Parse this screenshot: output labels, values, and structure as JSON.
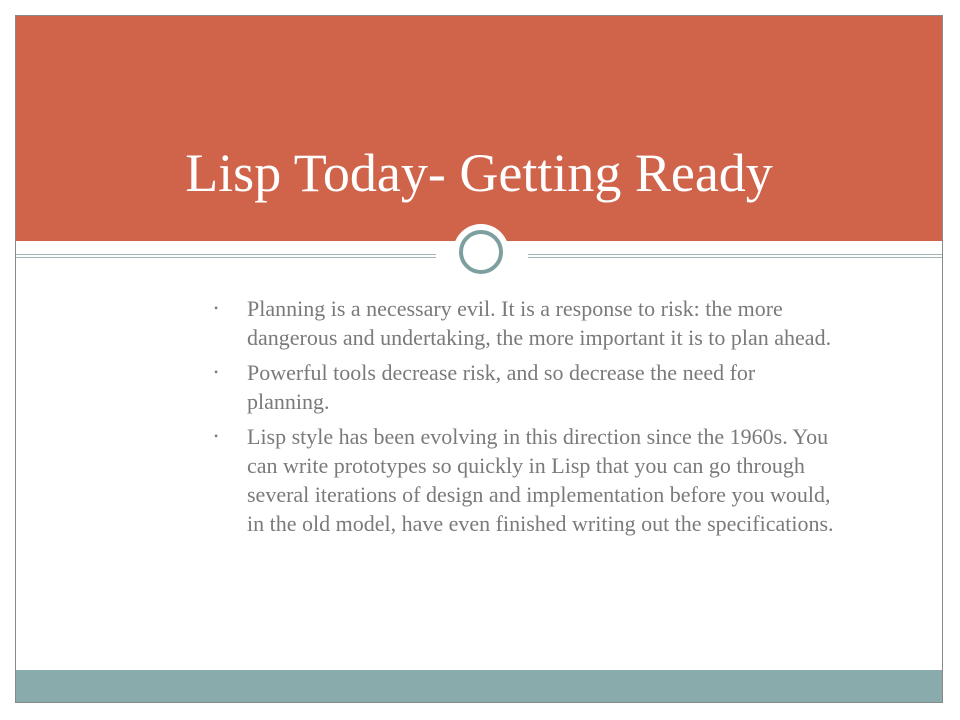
{
  "slide": {
    "title": "Lisp Today- Getting Ready",
    "bullets": [
      "Planning is a necessary evil. It is a response to risk: the more dangerous and undertaking, the more important it is to plan ahead.",
      "Powerful tools decrease risk, and so decrease the need for planning.",
      "Lisp style has been evolving in this direction since the 1960s. You can write prototypes so quickly in Lisp that you can go through several iterations of design and implementation before you would, in the old model, have even finished writing out the specifications."
    ],
    "bullet_symbol": "•"
  },
  "theme": {
    "accent": "#d0644b",
    "secondary": "#8aabab",
    "text": "#7a7a7a",
    "ring": "#7d9fa0"
  }
}
